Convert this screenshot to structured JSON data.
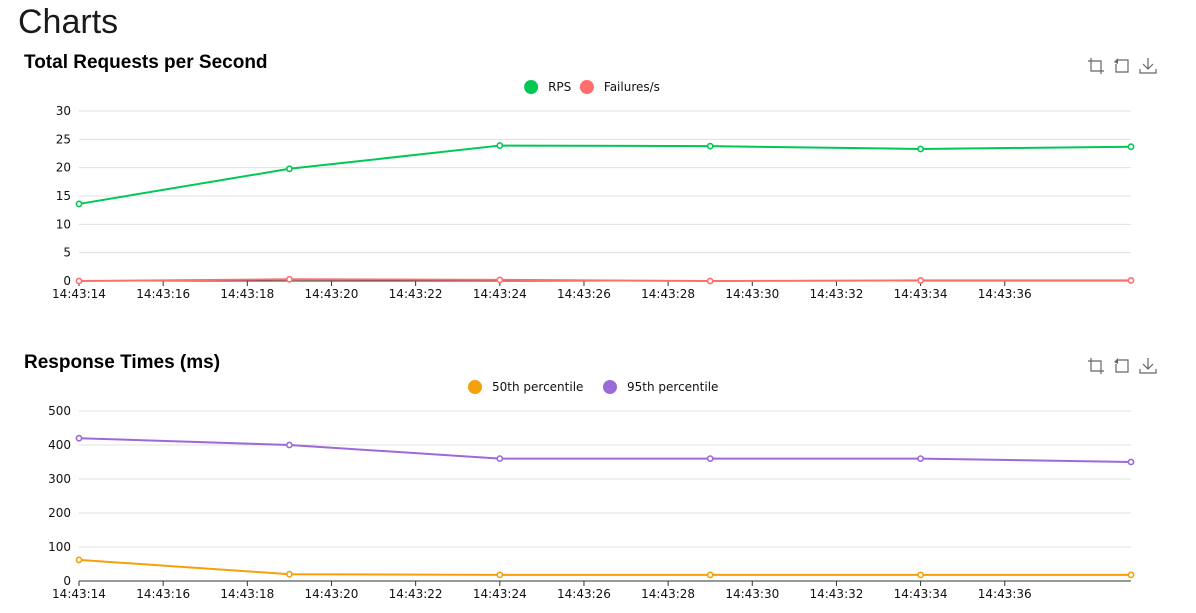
{
  "page": {
    "title": "Charts"
  },
  "toolbox": [
    "zoom-icon",
    "restore-icon",
    "download-icon"
  ],
  "chart_data": [
    {
      "type": "line",
      "title": "Total Requests per Second",
      "x": [
        "14:43:14",
        "14:43:19",
        "14:43:24",
        "14:43:29",
        "14:43:34",
        "14:43:39"
      ],
      "xticks": [
        "14:43:14",
        "14:43:16",
        "14:43:18",
        "14:43:20",
        "14:43:22",
        "14:43:24",
        "14:43:26",
        "14:43:28",
        "14:43:30",
        "14:43:32",
        "14:43:34",
        "14:43:36"
      ],
      "ylim": [
        0,
        30
      ],
      "yticks": [
        0,
        5,
        10,
        15,
        20,
        25,
        30
      ],
      "grid": true,
      "legend": "top-center",
      "series": [
        {
          "name": "RPS",
          "color": "#00c853",
          "values": [
            13.6,
            19.8,
            23.9,
            23.8,
            23.3,
            23.7
          ]
        },
        {
          "name": "Failures/s",
          "color": "#ff6d6d",
          "values": [
            0,
            0.3,
            0.2,
            0,
            0.1,
            0.1
          ]
        }
      ]
    },
    {
      "type": "line",
      "title": "Response Times (ms)",
      "x": [
        "14:43:14",
        "14:43:19",
        "14:43:24",
        "14:43:29",
        "14:43:34",
        "14:43:39"
      ],
      "xticks": [
        "14:43:14",
        "14:43:16",
        "14:43:18",
        "14:43:20",
        "14:43:22",
        "14:43:24",
        "14:43:26",
        "14:43:28",
        "14:43:30",
        "14:43:32",
        "14:43:34",
        "14:43:36"
      ],
      "ylim": [
        0,
        500
      ],
      "yticks": [
        0,
        100,
        200,
        300,
        400,
        500
      ],
      "grid": true,
      "legend": "top-center",
      "series": [
        {
          "name": "50th percentile",
          "color": "#f5a00a",
          "values": [
            62,
            20,
            18,
            18,
            18,
            18
          ]
        },
        {
          "name": "95th percentile",
          "color": "#9c6ad6",
          "values": [
            420,
            400,
            360,
            360,
            360,
            350
          ]
        }
      ]
    }
  ]
}
